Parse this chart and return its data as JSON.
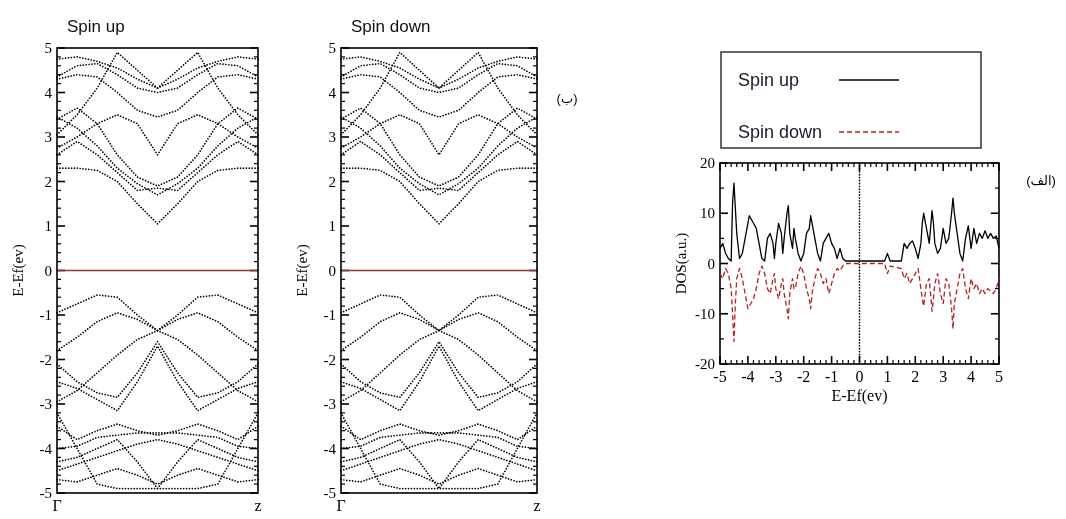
{
  "chart_data": [
    {
      "type": "line",
      "title": "Spin up",
      "ylabel": "E-Ef(ev)",
      "categories": [
        "Γ",
        null,
        null,
        null,
        null,
        null,
        null,
        null,
        null,
        null,
        "z"
      ],
      "ylim": [
        -5,
        5
      ],
      "yticks": [
        -5,
        -4,
        -3,
        -2,
        -1,
        0,
        1,
        2,
        3,
        4,
        5
      ],
      "line_style": "dotted",
      "ref_lines": [
        {
          "axis": "y",
          "value": 0,
          "label": null,
          "color": "#8b3a3a"
        }
      ],
      "series": [
        {
          "color": "#000000",
          "values": [
            2.3,
            2.3,
            2.25,
            2.0,
            1.5,
            1.05,
            1.5,
            2.0,
            2.25,
            2.3,
            2.3
          ]
        },
        {
          "color": "#000000",
          "values": [
            2.6,
            2.9,
            2.6,
            2.2,
            1.8,
            1.85,
            1.8,
            2.2,
            2.6,
            2.9,
            2.6
          ]
        },
        {
          "color": "#000000",
          "values": [
            3.45,
            3.2,
            2.8,
            2.3,
            1.95,
            1.7,
            1.95,
            2.3,
            2.8,
            3.2,
            3.45
          ]
        },
        {
          "color": "#000000",
          "values": [
            2.75,
            3.0,
            3.3,
            3.5,
            3.3,
            2.6,
            3.3,
            3.5,
            3.3,
            3.0,
            2.75
          ]
        },
        {
          "color": "#000000",
          "values": [
            3.4,
            3.65,
            3.3,
            2.6,
            2.1,
            1.9,
            2.1,
            2.6,
            3.3,
            3.65,
            3.4
          ]
        },
        {
          "color": "#000000",
          "values": [
            4.3,
            4.4,
            4.35,
            4.0,
            3.6,
            3.45,
            3.6,
            4.0,
            4.35,
            4.4,
            4.3
          ]
        },
        {
          "color": "#000000",
          "values": [
            4.35,
            4.6,
            4.65,
            4.4,
            4.1,
            4.0,
            4.1,
            4.4,
            4.65,
            4.6,
            4.35
          ]
        },
        {
          "color": "#000000",
          "values": [
            4.75,
            4.8,
            4.7,
            4.55,
            4.3,
            4.1,
            4.3,
            4.55,
            4.7,
            4.8,
            4.75
          ]
        },
        {
          "color": "#000000",
          "values": [
            3.05,
            3.5,
            4.1,
            4.9,
            4.5,
            4.1,
            4.5,
            4.9,
            4.1,
            3.5,
            3.05
          ]
        },
        {
          "color": "#000000",
          "values": [
            -0.95,
            -0.75,
            -0.55,
            -0.6,
            -1.0,
            -1.35,
            -1.0,
            -0.6,
            -0.55,
            -0.75,
            -0.95
          ]
        },
        {
          "color": "#000000",
          "values": [
            -1.8,
            -1.5,
            -1.15,
            -0.95,
            -1.1,
            -1.35,
            -1.1,
            -0.95,
            -1.15,
            -1.5,
            -1.8
          ]
        },
        {
          "color": "#000000",
          "values": [
            -2.1,
            -2.5,
            -2.75,
            -2.85,
            -2.3,
            -1.6,
            -2.3,
            -2.85,
            -2.75,
            -2.5,
            -2.1
          ]
        },
        {
          "color": "#000000",
          "values": [
            -2.5,
            -2.65,
            -2.9,
            -3.15,
            -2.5,
            -1.7,
            -2.5,
            -3.15,
            -2.9,
            -2.65,
            -2.5
          ]
        },
        {
          "color": "#000000",
          "values": [
            -2.95,
            -2.7,
            -2.3,
            -1.9,
            -1.55,
            -1.35,
            -1.55,
            -1.9,
            -2.3,
            -2.7,
            -2.95
          ]
        },
        {
          "color": "#000000",
          "values": [
            -3.5,
            -3.8,
            -3.6,
            -3.45,
            -3.6,
            -3.7,
            -3.6,
            -3.45,
            -3.6,
            -3.8,
            -3.5
          ]
        },
        {
          "color": "#000000",
          "values": [
            -4.0,
            -3.95,
            -3.75,
            -3.7,
            -3.65,
            -3.65,
            -3.65,
            -3.7,
            -3.75,
            -3.95,
            -4.0
          ]
        },
        {
          "color": "#000000",
          "values": [
            -4.3,
            -4.2,
            -4.0,
            -3.8,
            -4.3,
            -4.9,
            -4.3,
            -3.8,
            -4.0,
            -4.2,
            -4.3
          ]
        },
        {
          "color": "#000000",
          "values": [
            -4.5,
            -4.35,
            -4.2,
            -4.05,
            -3.9,
            -3.8,
            -3.9,
            -4.05,
            -4.2,
            -4.35,
            -4.5
          ]
        },
        {
          "color": "#000000",
          "values": [
            -4.7,
            -4.75,
            -4.6,
            -4.45,
            -4.6,
            -4.8,
            -4.6,
            -4.45,
            -4.6,
            -4.75,
            -4.7
          ]
        },
        {
          "color": "#000000",
          "values": [
            -3.2,
            -4.0,
            -4.8,
            -4.9,
            -4.9,
            -4.9,
            -4.9,
            -4.9,
            -4.8,
            -4.0,
            -3.2
          ]
        }
      ]
    },
    {
      "type": "line",
      "title": "Spin down",
      "ylabel": "E-Ef(ev)",
      "categories": [
        "Γ",
        null,
        null,
        null,
        null,
        null,
        null,
        null,
        null,
        null,
        "z"
      ],
      "ylim": [
        -5,
        5
      ],
      "yticks": [
        -5,
        -4,
        -3,
        -2,
        -1,
        0,
        1,
        2,
        3,
        4,
        5
      ],
      "line_style": "dotted",
      "ref_lines": [
        {
          "axis": "y",
          "value": 0,
          "label": null,
          "color": "#8b3a3a"
        }
      ],
      "annotations": [
        "(ب)"
      ],
      "series": [
        {
          "color": "#000000",
          "values": [
            2.3,
            2.3,
            2.25,
            2.0,
            1.5,
            1.05,
            1.5,
            2.0,
            2.25,
            2.3,
            2.3
          ]
        },
        {
          "color": "#000000",
          "values": [
            2.6,
            2.9,
            2.6,
            2.2,
            1.8,
            1.85,
            1.8,
            2.2,
            2.6,
            2.9,
            2.6
          ]
        },
        {
          "color": "#000000",
          "values": [
            3.45,
            3.2,
            2.8,
            2.3,
            1.95,
            1.7,
            1.95,
            2.3,
            2.8,
            3.2,
            3.45
          ]
        },
        {
          "color": "#000000",
          "values": [
            2.75,
            3.0,
            3.3,
            3.5,
            3.3,
            2.6,
            3.3,
            3.5,
            3.3,
            3.0,
            2.75
          ]
        },
        {
          "color": "#000000",
          "values": [
            3.4,
            3.65,
            3.3,
            2.6,
            2.1,
            1.9,
            2.1,
            2.6,
            3.3,
            3.65,
            3.4
          ]
        },
        {
          "color": "#000000",
          "values": [
            4.3,
            4.4,
            4.35,
            4.0,
            3.6,
            3.45,
            3.6,
            4.0,
            4.35,
            4.4,
            4.3
          ]
        },
        {
          "color": "#000000",
          "values": [
            4.35,
            4.6,
            4.65,
            4.4,
            4.1,
            4.0,
            4.1,
            4.4,
            4.65,
            4.6,
            4.35
          ]
        },
        {
          "color": "#000000",
          "values": [
            4.75,
            4.8,
            4.7,
            4.55,
            4.3,
            4.1,
            4.3,
            4.55,
            4.7,
            4.8,
            4.75
          ]
        },
        {
          "color": "#000000",
          "values": [
            3.05,
            3.5,
            4.1,
            4.9,
            4.5,
            4.1,
            4.5,
            4.9,
            4.1,
            3.5,
            3.05
          ]
        },
        {
          "color": "#000000",
          "values": [
            -0.95,
            -0.75,
            -0.55,
            -0.6,
            -1.0,
            -1.35,
            -1.0,
            -0.6,
            -0.55,
            -0.75,
            -0.95
          ]
        },
        {
          "color": "#000000",
          "values": [
            -1.8,
            -1.5,
            -1.15,
            -0.95,
            -1.1,
            -1.35,
            -1.1,
            -0.95,
            -1.15,
            -1.5,
            -1.8
          ]
        },
        {
          "color": "#000000",
          "values": [
            -2.1,
            -2.5,
            -2.75,
            -2.85,
            -2.3,
            -1.6,
            -2.3,
            -2.85,
            -2.75,
            -2.5,
            -2.1
          ]
        },
        {
          "color": "#000000",
          "values": [
            -2.5,
            -2.65,
            -2.9,
            -3.15,
            -2.5,
            -1.7,
            -2.5,
            -3.15,
            -2.9,
            -2.65,
            -2.5
          ]
        },
        {
          "color": "#000000",
          "values": [
            -2.95,
            -2.7,
            -2.3,
            -1.9,
            -1.55,
            -1.35,
            -1.55,
            -1.9,
            -2.3,
            -2.7,
            -2.95
          ]
        },
        {
          "color": "#000000",
          "values": [
            -3.5,
            -3.8,
            -3.6,
            -3.45,
            -3.6,
            -3.7,
            -3.6,
            -3.45,
            -3.6,
            -3.8,
            -3.5
          ]
        },
        {
          "color": "#000000",
          "values": [
            -4.0,
            -3.95,
            -3.75,
            -3.7,
            -3.65,
            -3.65,
            -3.65,
            -3.7,
            -3.75,
            -3.95,
            -4.0
          ]
        },
        {
          "color": "#000000",
          "values": [
            -4.3,
            -4.2,
            -4.0,
            -3.8,
            -4.3,
            -4.9,
            -4.3,
            -3.8,
            -4.0,
            -4.2,
            -4.3
          ]
        },
        {
          "color": "#000000",
          "values": [
            -4.5,
            -4.35,
            -4.2,
            -4.05,
            -3.9,
            -3.8,
            -3.9,
            -4.05,
            -4.2,
            -4.35,
            -4.5
          ]
        },
        {
          "color": "#000000",
          "values": [
            -4.7,
            -4.75,
            -4.6,
            -4.45,
            -4.6,
            -4.8,
            -4.6,
            -4.45,
            -4.6,
            -4.75,
            -4.7
          ]
        },
        {
          "color": "#000000",
          "values": [
            -3.2,
            -4.0,
            -4.8,
            -4.9,
            -4.9,
            -4.9,
            -4.9,
            -4.9,
            -4.8,
            -4.0,
            -3.2
          ]
        }
      ]
    },
    {
      "type": "line",
      "xlabel": "E-Ef(ev)",
      "ylabel": "DOS(a.u.)",
      "xlim": [
        -5,
        5
      ],
      "xticks": [
        -5,
        -4,
        -3,
        -2,
        -1,
        0,
        1,
        2,
        3,
        4,
        5
      ],
      "ylim": [
        -20,
        20
      ],
      "yticks": [
        -20,
        -10,
        0,
        10,
        20
      ],
      "legend": "top",
      "ref_lines": [
        {
          "axis": "x",
          "value": 0,
          "label": null,
          "color": "#000000",
          "line_style": "dotted"
        }
      ],
      "annotations": [
        "(الف)"
      ],
      "series": [
        {
          "name": "Spin up",
          "color": "#000000",
          "line_style": "solid",
          "x": [
            -5,
            -4.9,
            -4.8,
            -4.7,
            -4.6,
            -4.55,
            -4.5,
            -4.45,
            -4.4,
            -4.3,
            -4.2,
            -4.1,
            -4.0,
            -3.95,
            -3.9,
            -3.8,
            -3.7,
            -3.6,
            -3.5,
            -3.4,
            -3.3,
            -3.2,
            -3.1,
            -3.05,
            -3.0,
            -2.9,
            -2.8,
            -2.75,
            -2.7,
            -2.6,
            -2.55,
            -2.5,
            -2.4,
            -2.35,
            -2.3,
            -2.2,
            -2.1,
            -2.0,
            -1.9,
            -1.8,
            -1.75,
            -1.7,
            -1.6,
            -1.5,
            -1.4,
            -1.3,
            -1.2,
            -1.1,
            -1.0,
            -0.9,
            -0.8,
            -0.7,
            -0.6,
            -0.5,
            0.9,
            1.0,
            1.1,
            1.5,
            1.6,
            1.7,
            1.8,
            1.9,
            2.0,
            2.1,
            2.2,
            2.25,
            2.3,
            2.4,
            2.5,
            2.6,
            2.65,
            2.7,
            2.8,
            2.9,
            3.0,
            3.1,
            3.2,
            3.3,
            3.35,
            3.4,
            3.5,
            3.6,
            3.7,
            3.8,
            3.9,
            4.0,
            4.1,
            4.2,
            4.3,
            4.4,
            4.5,
            4.6,
            4.7,
            4.8,
            4.9,
            5.0
          ],
          "values": [
            3,
            4,
            2,
            1,
            0.5,
            12,
            16,
            11,
            6,
            1,
            2,
            5,
            8,
            9.5,
            9,
            8,
            7,
            4,
            1,
            0.5,
            5,
            6,
            4,
            1,
            4,
            8,
            6,
            2,
            5,
            10,
            11.5,
            6,
            3,
            7,
            5,
            2,
            0.5,
            2,
            6,
            7,
            9.5,
            8,
            5,
            2,
            0.5,
            4,
            5,
            6,
            4,
            3,
            1,
            3,
            1,
            0.5,
            0.5,
            2,
            0.5,
            0.5,
            4,
            3,
            4,
            4.5,
            3,
            1,
            4,
            8,
            10,
            7,
            4,
            10.5,
            8,
            4,
            2,
            3,
            7,
            4,
            5,
            10,
            13,
            10,
            6,
            2,
            0.5,
            5,
            7.5,
            3,
            7,
            4,
            6,
            5,
            6.5,
            5,
            6,
            5,
            5.5,
            3
          ]
        },
        {
          "name": "Spin down",
          "color": "#b22222",
          "line_style": "dashed",
          "x": [
            -5,
            -4.9,
            -4.8,
            -4.7,
            -4.6,
            -4.55,
            -4.5,
            -4.45,
            -4.4,
            -4.3,
            -4.2,
            -4.1,
            -4.0,
            -3.95,
            -3.9,
            -3.8,
            -3.7,
            -3.6,
            -3.5,
            -3.4,
            -3.3,
            -3.2,
            -3.1,
            -3.05,
            -3.0,
            -2.9,
            -2.8,
            -2.75,
            -2.7,
            -2.6,
            -2.55,
            -2.5,
            -2.4,
            -2.35,
            -2.3,
            -2.2,
            -2.1,
            -2.0,
            -1.9,
            -1.8,
            -1.75,
            -1.7,
            -1.6,
            -1.5,
            -1.4,
            -1.3,
            -1.2,
            -1.1,
            -1.0,
            -0.9,
            -0.8,
            -0.7,
            -0.6,
            -0.5,
            0.9,
            1.0,
            1.1,
            1.5,
            1.6,
            1.7,
            1.8,
            1.9,
            2.0,
            2.1,
            2.2,
            2.25,
            2.3,
            2.4,
            2.5,
            2.6,
            2.65,
            2.7,
            2.8,
            2.9,
            3.0,
            3.1,
            3.2,
            3.3,
            3.35,
            3.4,
            3.5,
            3.6,
            3.7,
            3.8,
            3.9,
            4.0,
            4.1,
            4.2,
            4.3,
            4.4,
            4.5,
            4.6,
            4.7,
            4.8,
            4.9,
            5.0
          ],
          "values": [
            -2,
            -3,
            -1,
            -2,
            -5,
            -10,
            -15.5,
            -8,
            -3,
            -1,
            -3,
            -6,
            -9,
            -8.5,
            -8,
            -7,
            -5,
            -2,
            -0.5,
            -2,
            -5,
            -6,
            -3,
            -2,
            -5,
            -7,
            -4,
            -3,
            -6,
            -9,
            -11,
            -6,
            -3,
            -5,
            -5,
            -2,
            -0.5,
            -2,
            -5,
            -7,
            -9,
            -6,
            -3,
            -1,
            -2,
            -4,
            -3,
            -6,
            -4,
            -2,
            -1,
            -1.5,
            -0.5,
            0,
            0,
            -2,
            -0.5,
            -1,
            -3,
            -2,
            -4,
            -3,
            -2,
            -1,
            -5,
            -7,
            -8.5,
            -4,
            -3,
            -9.5,
            -7,
            -4,
            -2,
            -6,
            -8,
            -3,
            -4,
            -9,
            -13,
            -8,
            -5,
            -2,
            -1,
            -5,
            -7,
            -3,
            -5,
            -4,
            -6,
            -5,
            -6,
            -5,
            -5.5,
            -6,
            -5,
            -3
          ]
        }
      ]
    }
  ]
}
